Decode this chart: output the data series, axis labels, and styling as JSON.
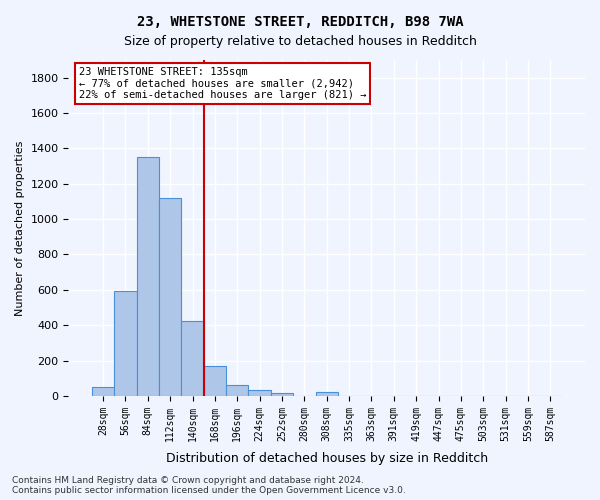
{
  "title1": "23, WHETSTONE STREET, REDDITCH, B98 7WA",
  "title2": "Size of property relative to detached houses in Redditch",
  "xlabel": "Distribution of detached houses by size in Redditch",
  "ylabel": "Number of detached properties",
  "bin_labels": [
    "28sqm",
    "56sqm",
    "84sqm",
    "112sqm",
    "140sqm",
    "168sqm",
    "196sqm",
    "224sqm",
    "252sqm",
    "280sqm",
    "308sqm",
    "335sqm",
    "363sqm",
    "391sqm",
    "419sqm",
    "447sqm",
    "475sqm",
    "503sqm",
    "531sqm",
    "559sqm",
    "587sqm"
  ],
  "bar_values": [
    50,
    595,
    1350,
    1120,
    425,
    170,
    60,
    35,
    15,
    0,
    20,
    0,
    0,
    0,
    0,
    0,
    0,
    0,
    0,
    0,
    0
  ],
  "bar_color": "#aec6e8",
  "bar_edge_color": "#4a90d9",
  "vline_x": 4.5,
  "vline_color": "#cc0000",
  "ylim": [
    0,
    1900
  ],
  "yticks": [
    0,
    200,
    400,
    600,
    800,
    1000,
    1200,
    1400,
    1600,
    1800
  ],
  "annotation_text": "23 WHETSTONE STREET: 135sqm\n← 77% of detached houses are smaller (2,942)\n22% of semi-detached houses are larger (821) →",
  "annotation_box_color": "#ffffff",
  "annotation_box_edge": "#cc0000",
  "footnote": "Contains HM Land Registry data © Crown copyright and database right 2024.\nContains public sector information licensed under the Open Government Licence v3.0.",
  "background_color": "#f0f4ff",
  "grid_color": "#ffffff"
}
